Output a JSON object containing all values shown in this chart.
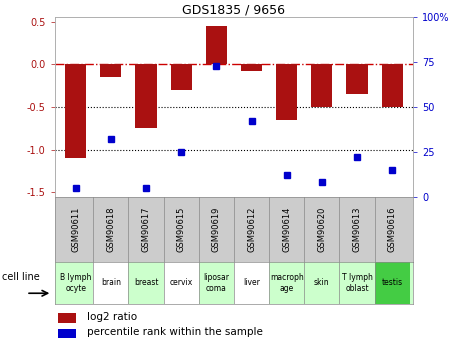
{
  "title": "GDS1835 / 9656",
  "gsm_labels": [
    "GSM90611",
    "GSM90618",
    "GSM90617",
    "GSM90615",
    "GSM90619",
    "GSM90612",
    "GSM90614",
    "GSM90620",
    "GSM90613",
    "GSM90616"
  ],
  "cell_lines": [
    "B lymph\nocyte",
    "brain",
    "breast",
    "cervix",
    "liposar\ncoma",
    "liver",
    "macroph\nage",
    "skin",
    "T lymph\noblast",
    "testis"
  ],
  "cell_line_colors": [
    "#ccffcc",
    "#ffffff",
    "#ccffcc",
    "#ffffff",
    "#ccffcc",
    "#ffffff",
    "#ccffcc",
    "#ccffcc",
    "#ccffcc",
    "#44cc44"
  ],
  "log2_ratio": [
    -1.1,
    -0.15,
    -0.75,
    -0.3,
    0.45,
    -0.08,
    -0.65,
    -0.5,
    -0.35,
    -0.5
  ],
  "percentile_rank": [
    5,
    32,
    5,
    25,
    73,
    42,
    12,
    8,
    22,
    15
  ],
  "bar_color": "#aa1111",
  "dot_color": "#0000cc",
  "left_ylim": [
    -1.55,
    0.55
  ],
  "right_ylim": [
    0,
    100
  ],
  "left_yticks": [
    -1.5,
    -1.0,
    -0.5,
    0.0,
    0.5
  ],
  "right_yticks": [
    0,
    25,
    50,
    75,
    100
  ],
  "right_yticklabels": [
    "0",
    "25",
    "50",
    "75",
    "100%"
  ],
  "hline_zero_color": "#cc0000",
  "hline_dotted_color": "#000000",
  "legend_red_label": "log2 ratio",
  "legend_blue_label": "percentile rank within the sample",
  "cell_line_label": "cell line",
  "bg_plot": "#ffffff",
  "bg_gsm": "#cccccc",
  "bar_width": 0.6
}
